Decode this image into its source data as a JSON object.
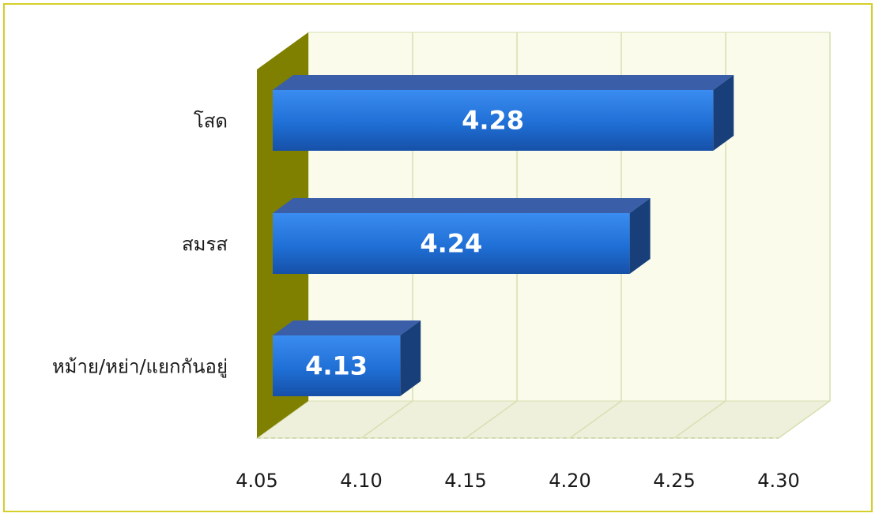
{
  "chart_data": {
    "type": "bar",
    "orientation": "horizontal",
    "style": "3d",
    "categories": [
      "โสด",
      "สมรส",
      "หม้าย/หย่า/แยกกันอยู่"
    ],
    "values": [
      4.28,
      4.24,
      4.13
    ],
    "value_labels": [
      "4.28",
      "4.24",
      "4.13"
    ],
    "x_ticks": [
      "4.05",
      "4.10",
      "4.15",
      "4.20",
      "4.25",
      "4.30"
    ],
    "xlim": [
      4.05,
      4.3
    ],
    "title": "",
    "xlabel": "",
    "ylabel": "",
    "grid": true,
    "legend": "none",
    "colors": {
      "bar_front": "#1f6fd6",
      "bar_top": "#3a5fa8",
      "bar_side": "#183f7a",
      "wall": "#fafbea",
      "floor": "#eef0dc",
      "side_wall": "#808000",
      "grid": "#d8dfb0",
      "frame_border": "#d4cf2a"
    }
  }
}
